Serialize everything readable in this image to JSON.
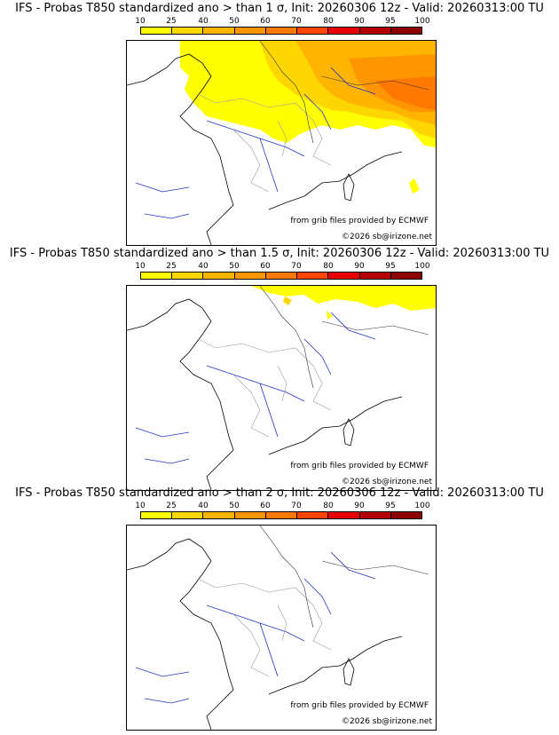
{
  "colorbar": {
    "labels": [
      "10",
      "25",
      "40",
      "50",
      "60",
      "70",
      "80",
      "90",
      "95",
      "100"
    ],
    "colors": [
      "#ffff00",
      "#ffd700",
      "#ffb400",
      "#ff9600",
      "#ff7800",
      "#ff4600",
      "#e60000",
      "#b40000",
      "#8c0000",
      "#5a0000"
    ]
  },
  "panels": [
    {
      "title": "IFS - Probas T850  standardized ano > than 1 σ, Init: 20260306 12z - Valid: 20260313:00 TU",
      "threshold": "1 σ",
      "credit_grib": "from grib files provided by ECMWF",
      "credit_copyright": "©2026 sb@irizone.net"
    },
    {
      "title": "IFS - Probas T850  standardized ano > than 1.5 σ, Init: 20260306 12z - Valid: 20260313:00 TU",
      "threshold": "1.5 σ",
      "credit_grib": "from grib files provided by ECMWF",
      "credit_copyright": "©2026 sb@irizone.net"
    },
    {
      "title": "IFS - Probas T850  standardized ano > than 2 σ, Init: 20260306 12z - Valid: 20260313:00 TU",
      "threshold": "2 σ",
      "credit_grib": "from grib files provided by ECMWF",
      "credit_copyright": "©2026 sb@irizone.net"
    }
  ]
}
